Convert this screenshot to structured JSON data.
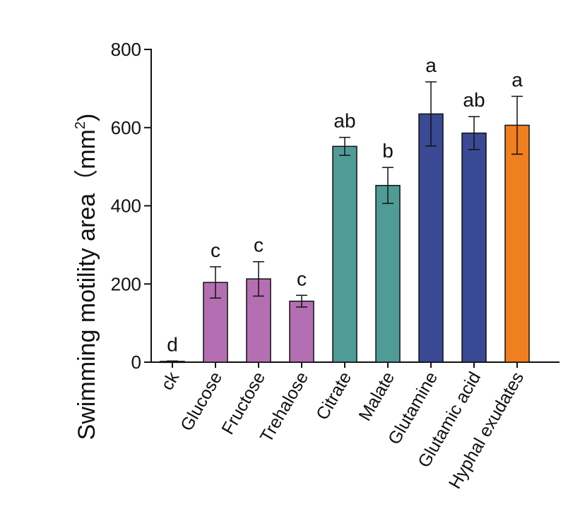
{
  "chart_data": {
    "type": "bar",
    "title": "",
    "xlabel": "",
    "ylabel": "Swimming motility area（mm",
    "ylabel_sup": "2",
    "ylabel_close": ")",
    "ylim": [
      0,
      800
    ],
    "yticks": [
      0,
      200,
      400,
      600,
      800
    ],
    "categories": [
      "ck",
      "Glucose",
      "Fructose",
      "Trehalose",
      "Citrate",
      "Malate",
      "Glutamine",
      "Glutamic acid",
      "Hyphal exudates"
    ],
    "values": [
      2,
      204,
      213,
      156,
      552,
      452,
      635,
      586,
      606
    ],
    "errors": [
      1,
      40,
      44,
      15,
      23,
      46,
      82,
      42,
      74
    ],
    "significance": [
      "d",
      "c",
      "c",
      "c",
      "ab",
      "b",
      "a",
      "ab",
      "a"
    ],
    "colors": [
      "#b46fb2",
      "#b46fb2",
      "#b46fb2",
      "#b46fb2",
      "#4f9c96",
      "#4f9c96",
      "#3a4994",
      "#3a4994",
      "#f07f1f"
    ],
    "grid": false,
    "legend": "none"
  }
}
